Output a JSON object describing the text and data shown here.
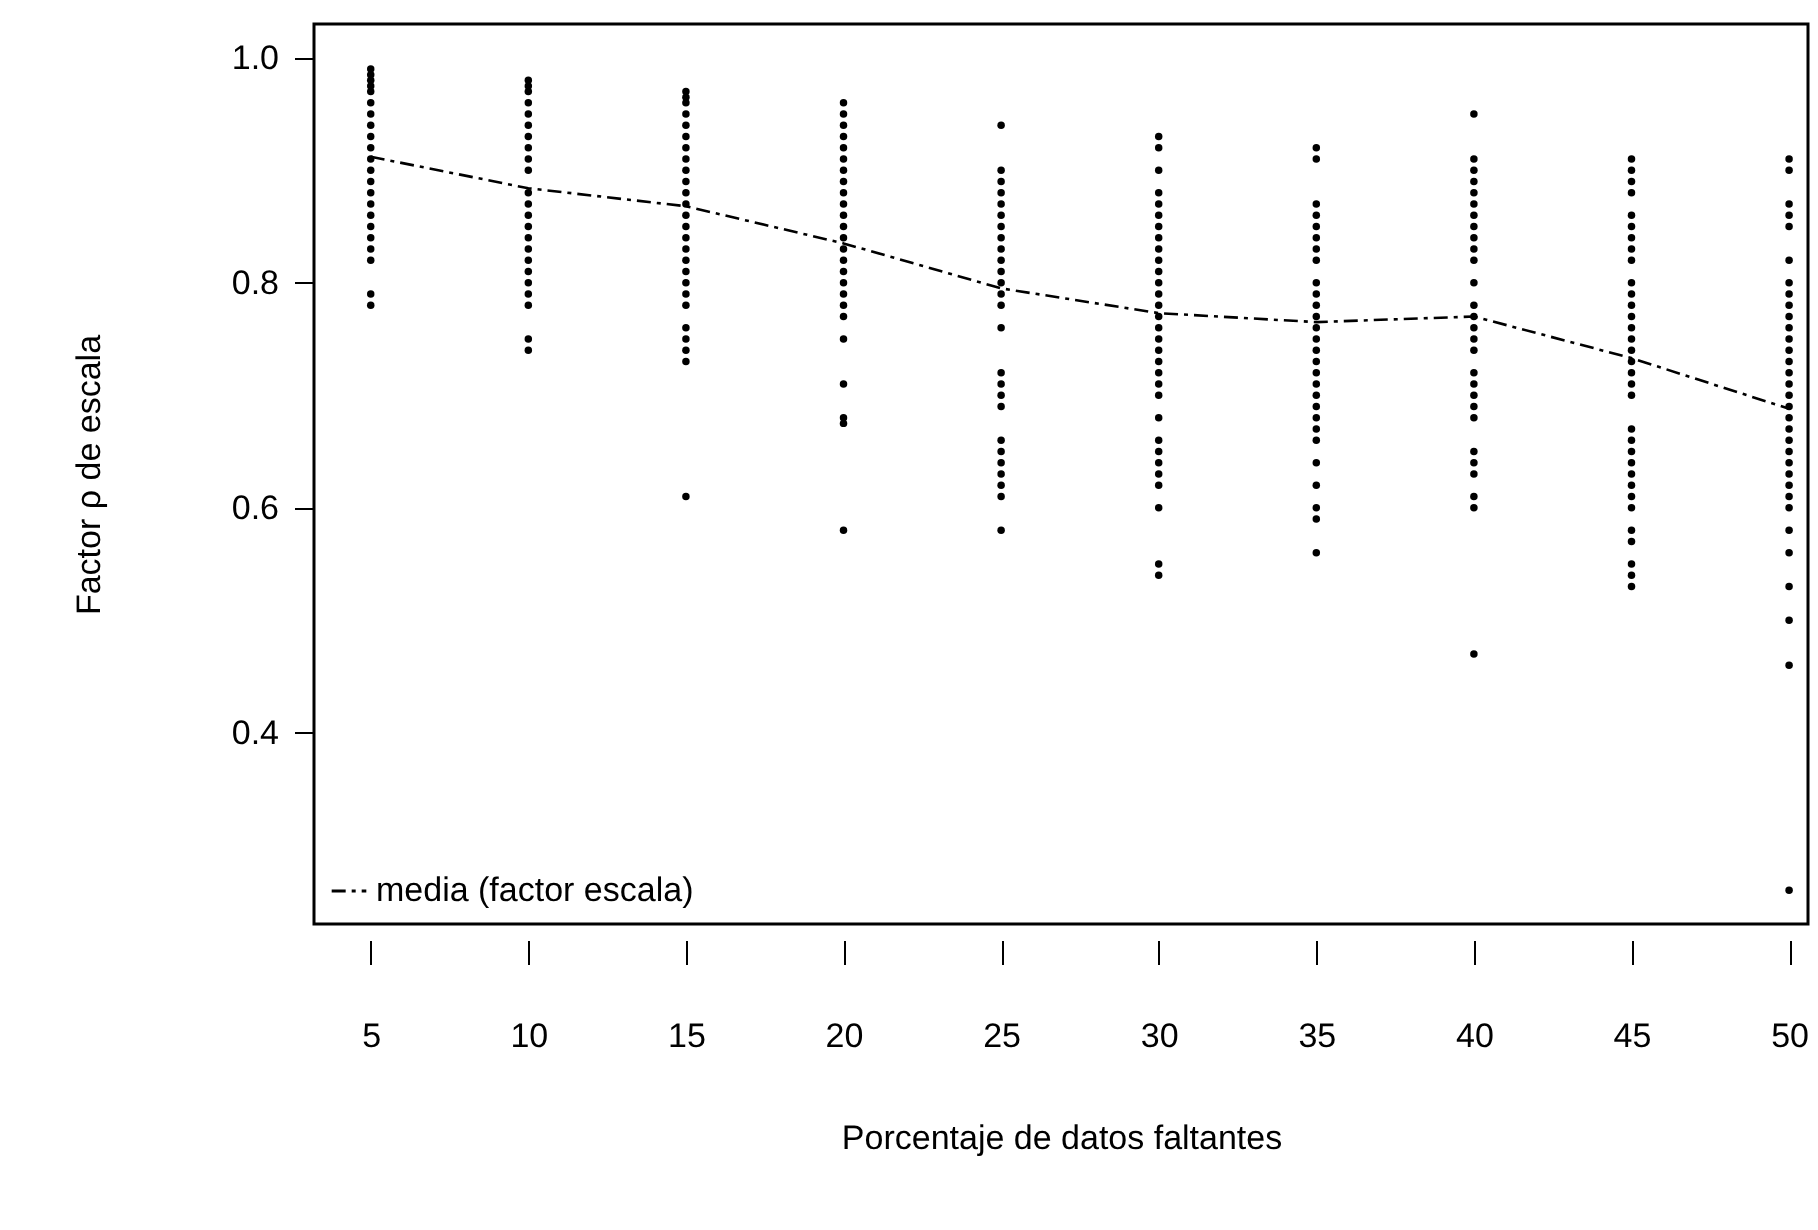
{
  "chart_data": {
    "type": "scatter",
    "xlabel": "Porcentaje de datos faltantes",
    "ylabel": "Factor ρ de escala",
    "xlim": [
      3.2,
      50.6
    ],
    "xticks": [
      5,
      10,
      15,
      20,
      25,
      30,
      35,
      40,
      45,
      50
    ],
    "ylim": [
      0.23,
      1.03
    ],
    "yticks": [
      0.4,
      0.6,
      0.8,
      {
        "value": 1.0,
        "label": "1.0"
      }
    ],
    "grid": false,
    "legend": "bottom left",
    "series": [
      {
        "marker": "circle",
        "color": "#000000",
        "x": [
          5,
          5,
          5,
          5,
          5,
          5,
          5,
          5,
          5,
          5,
          5,
          5,
          5,
          5,
          5,
          5,
          5,
          5,
          5,
          5,
          5,
          5,
          10,
          10,
          10,
          10,
          10,
          10,
          10,
          10,
          10,
          10,
          10,
          10,
          10,
          10,
          10,
          10,
          10,
          10,
          10,
          10,
          10,
          10,
          10,
          15,
          15,
          15,
          15,
          15,
          15,
          15,
          15,
          15,
          15,
          15,
          15,
          15,
          15,
          15,
          15,
          15,
          15,
          15,
          15,
          15,
          15,
          15,
          15,
          15,
          15,
          20,
          20,
          20,
          20,
          20,
          20,
          20,
          20,
          20,
          20,
          20,
          20,
          20,
          20,
          20,
          20,
          20,
          20,
          20,
          20,
          20,
          20,
          20,
          20,
          20,
          25,
          25,
          25,
          25,
          25,
          25,
          25,
          25,
          25,
          25,
          25,
          25,
          25,
          25,
          25,
          25,
          25,
          25,
          25,
          25,
          25,
          25,
          25,
          25,
          25,
          25,
          30,
          30,
          30,
          30,
          30,
          30,
          30,
          30,
          30,
          30,
          30,
          30,
          30,
          30,
          30,
          30,
          30,
          30,
          30,
          30,
          30,
          30,
          30,
          30,
          30,
          30,
          30,
          30,
          30,
          30,
          30,
          35,
          35,
          35,
          35,
          35,
          35,
          35,
          35,
          35,
          35,
          35,
          35,
          35,
          35,
          35,
          35,
          35,
          35,
          35,
          35,
          35,
          35,
          35,
          35,
          35,
          35,
          35,
          35,
          40,
          40,
          40,
          40,
          40,
          40,
          40,
          40,
          40,
          40,
          40,
          40,
          40,
          40,
          40,
          40,
          40,
          40,
          40,
          40,
          40,
          40,
          40,
          40,
          40,
          40,
          40,
          40,
          45,
          45,
          45,
          45,
          45,
          45,
          45,
          45,
          45,
          45,
          45,
          45,
          45,
          45,
          45,
          45,
          45,
          45,
          45,
          45,
          45,
          45,
          45,
          45,
          45,
          45,
          45,
          45,
          45,
          45,
          45,
          45,
          45,
          50,
          50,
          50,
          50,
          50,
          50,
          50,
          50,
          50,
          50,
          50,
          50,
          50,
          50,
          50,
          50,
          50,
          50,
          50,
          50,
          50,
          50,
          50,
          50,
          50,
          50,
          50,
          50,
          50,
          50,
          50,
          50,
          50
        ],
        "values": [
          0.99,
          0.985,
          0.98,
          0.975,
          0.97,
          0.96,
          0.95,
          0.94,
          0.93,
          0.92,
          0.91,
          0.9,
          0.89,
          0.88,
          0.87,
          0.86,
          0.85,
          0.84,
          0.83,
          0.82,
          0.79,
          0.78,
          0.98,
          0.975,
          0.97,
          0.96,
          0.95,
          0.94,
          0.93,
          0.92,
          0.91,
          0.9,
          0.88,
          0.87,
          0.86,
          0.85,
          0.84,
          0.83,
          0.82,
          0.81,
          0.8,
          0.79,
          0.78,
          0.75,
          0.74,
          0.97,
          0.965,
          0.96,
          0.95,
          0.94,
          0.93,
          0.92,
          0.91,
          0.9,
          0.89,
          0.88,
          0.87,
          0.86,
          0.85,
          0.84,
          0.83,
          0.82,
          0.81,
          0.8,
          0.79,
          0.78,
          0.76,
          0.75,
          0.74,
          0.73,
          0.61,
          0.96,
          0.95,
          0.94,
          0.93,
          0.92,
          0.91,
          0.9,
          0.89,
          0.88,
          0.87,
          0.86,
          0.85,
          0.84,
          0.83,
          0.82,
          0.81,
          0.8,
          0.79,
          0.78,
          0.77,
          0.75,
          0.71,
          0.68,
          0.675,
          0.58,
          0.94,
          0.9,
          0.89,
          0.88,
          0.87,
          0.86,
          0.85,
          0.84,
          0.83,
          0.82,
          0.81,
          0.8,
          0.79,
          0.78,
          0.76,
          0.72,
          0.71,
          0.7,
          0.69,
          0.66,
          0.65,
          0.64,
          0.63,
          0.62,
          0.61,
          0.58,
          0.93,
          0.92,
          0.9,
          0.88,
          0.87,
          0.86,
          0.85,
          0.84,
          0.83,
          0.82,
          0.81,
          0.8,
          0.79,
          0.78,
          0.77,
          0.76,
          0.75,
          0.74,
          0.73,
          0.72,
          0.71,
          0.7,
          0.68,
          0.66,
          0.65,
          0.64,
          0.63,
          0.62,
          0.6,
          0.55,
          0.54,
          0.92,
          0.91,
          0.87,
          0.86,
          0.85,
          0.84,
          0.83,
          0.82,
          0.8,
          0.79,
          0.78,
          0.77,
          0.76,
          0.75,
          0.74,
          0.73,
          0.72,
          0.71,
          0.7,
          0.69,
          0.68,
          0.67,
          0.66,
          0.64,
          0.62,
          0.6,
          0.59,
          0.56,
          0.95,
          0.91,
          0.9,
          0.89,
          0.88,
          0.87,
          0.86,
          0.85,
          0.84,
          0.83,
          0.82,
          0.8,
          0.78,
          0.77,
          0.76,
          0.75,
          0.74,
          0.72,
          0.71,
          0.7,
          0.69,
          0.68,
          0.65,
          0.64,
          0.63,
          0.61,
          0.6,
          0.47,
          0.91,
          0.9,
          0.89,
          0.88,
          0.86,
          0.85,
          0.84,
          0.83,
          0.82,
          0.8,
          0.79,
          0.78,
          0.77,
          0.76,
          0.75,
          0.74,
          0.73,
          0.72,
          0.71,
          0.7,
          0.67,
          0.66,
          0.65,
          0.64,
          0.63,
          0.62,
          0.61,
          0.6,
          0.58,
          0.57,
          0.55,
          0.54,
          0.53,
          0.91,
          0.9,
          0.87,
          0.86,
          0.85,
          0.82,
          0.8,
          0.79,
          0.78,
          0.77,
          0.76,
          0.75,
          0.74,
          0.73,
          0.72,
          0.71,
          0.7,
          0.69,
          0.68,
          0.67,
          0.66,
          0.65,
          0.64,
          0.63,
          0.62,
          0.61,
          0.6,
          0.58,
          0.56,
          0.53,
          0.5,
          0.46,
          0.26
        ]
      },
      {
        "type": "line",
        "name": "media (factor escala)",
        "color": "#000000",
        "line_style": "dashed",
        "marker": "none",
        "x": [
          5,
          10,
          15,
          20,
          25,
          30,
          35,
          40,
          45,
          50
        ],
        "values": [
          0.912,
          0.884,
          0.868,
          0.835,
          0.795,
          0.773,
          0.765,
          0.77,
          0.733,
          0.688
        ]
      }
    ]
  }
}
